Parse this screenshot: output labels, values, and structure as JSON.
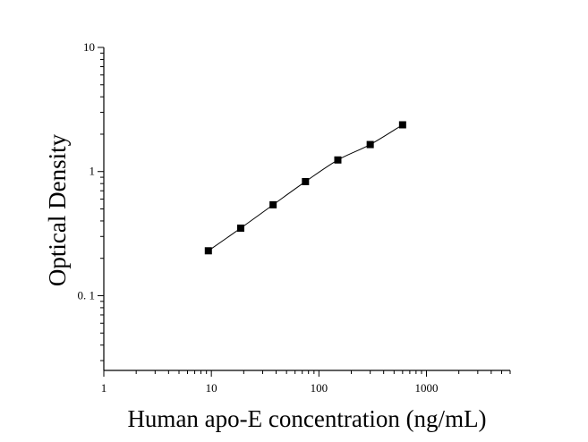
{
  "chart_data": {
    "type": "scatter",
    "title": "",
    "xlabel": "Human apo-E concentration (ng/mL)",
    "ylabel": "Optical Density",
    "x_scale": "log",
    "y_scale": "log",
    "xlim": [
      1,
      6000
    ],
    "ylim": [
      0.025,
      10
    ],
    "x_ticks": [
      {
        "value": 1,
        "label": "1"
      },
      {
        "value": 10,
        "label": "10"
      },
      {
        "value": 100,
        "label": "100"
      },
      {
        "value": 1000,
        "label": "1000"
      }
    ],
    "y_ticks": [
      {
        "value": 0.1,
        "label": "0. 1"
      },
      {
        "value": 1,
        "label": "1"
      },
      {
        "value": 10,
        "label": "10"
      }
    ],
    "grid": false,
    "legend": "none",
    "series": [
      {
        "x": [
          9.375,
          18.75,
          37.5,
          75,
          150,
          300,
          600
        ],
        "y": [
          0.23,
          0.35,
          0.54,
          0.83,
          1.24,
          1.65,
          2.38
        ],
        "marker": "square",
        "fit_line": true
      }
    ],
    "colors": {
      "marker": "#000000",
      "line": "#000000",
      "axis": "#000000"
    }
  }
}
